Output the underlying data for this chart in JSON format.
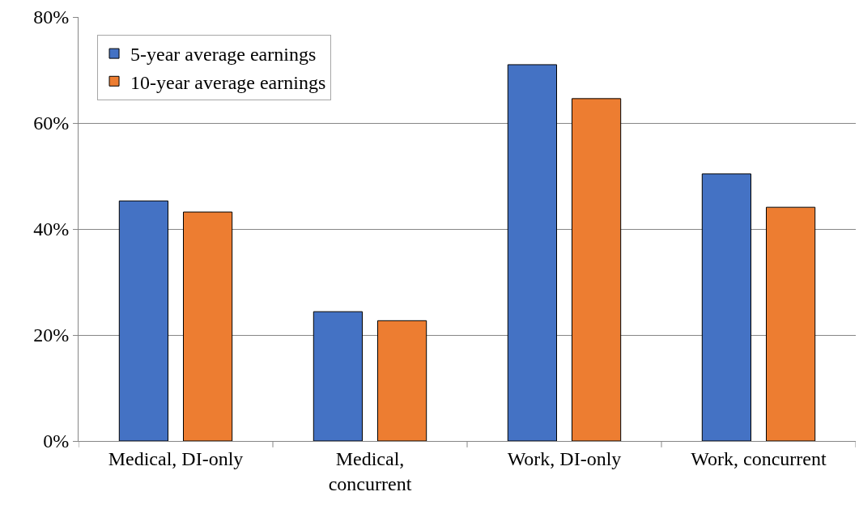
{
  "chart_data": {
    "type": "bar",
    "categories": [
      "Medical, DI-only",
      "Medical, concurrent",
      "Work, DI-only",
      "Work, concurrent"
    ],
    "series": [
      {
        "name": "5-year average earnings",
        "color": "#4472c4",
        "values": [
          45.3,
          24.4,
          71.0,
          50.4
        ]
      },
      {
        "name": "10-year average earnings",
        "color": "#ed7d31",
        "values": [
          43.2,
          22.7,
          64.6,
          44.1
        ]
      }
    ],
    "ylim": [
      0,
      80
    ],
    "yticks": [
      {
        "value": 0,
        "label": "0%"
      },
      {
        "value": 20,
        "label": "20%"
      },
      {
        "value": 40,
        "label": "40%"
      },
      {
        "value": 60,
        "label": "60%"
      },
      {
        "value": 80,
        "label": "80%"
      }
    ],
    "grid": "y",
    "legend": "top left"
  }
}
